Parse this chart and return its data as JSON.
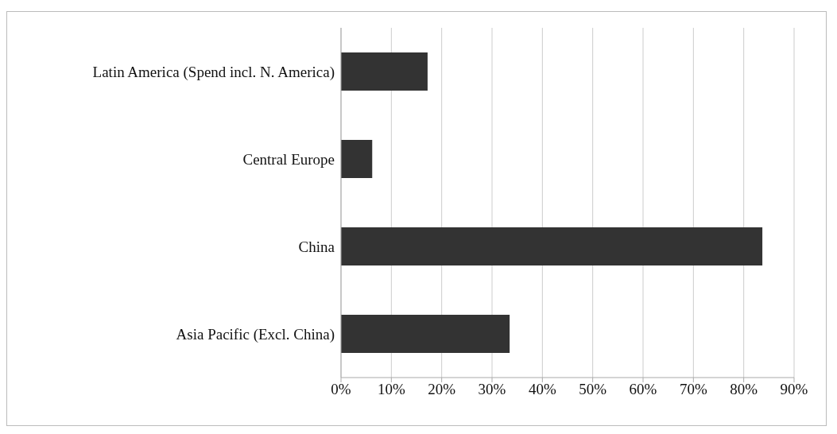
{
  "chart_data": {
    "type": "bar",
    "orientation": "horizontal",
    "categories": [
      "Latin America (Spend incl. N. America)",
      "Central Europe",
      "China",
      "Asia Pacific (Excl. China)"
    ],
    "values": [
      17.2,
      6.2,
      83.7,
      33.5
    ],
    "color": "#333333",
    "xlim": [
      0,
      90
    ],
    "xticks": [
      {
        "value": 0,
        "label": "0%"
      },
      {
        "value": 10,
        "label": "10%"
      },
      {
        "value": 20,
        "label": "20%"
      },
      {
        "value": 30,
        "label": "30%"
      },
      {
        "value": 40,
        "label": "40%"
      },
      {
        "value": 50,
        "label": "50%"
      },
      {
        "value": 60,
        "label": "60%"
      },
      {
        "value": 70,
        "label": "70%"
      },
      {
        "value": 80,
        "label": "80%"
      },
      {
        "value": 90,
        "label": "90%"
      }
    ],
    "grid": "x"
  }
}
